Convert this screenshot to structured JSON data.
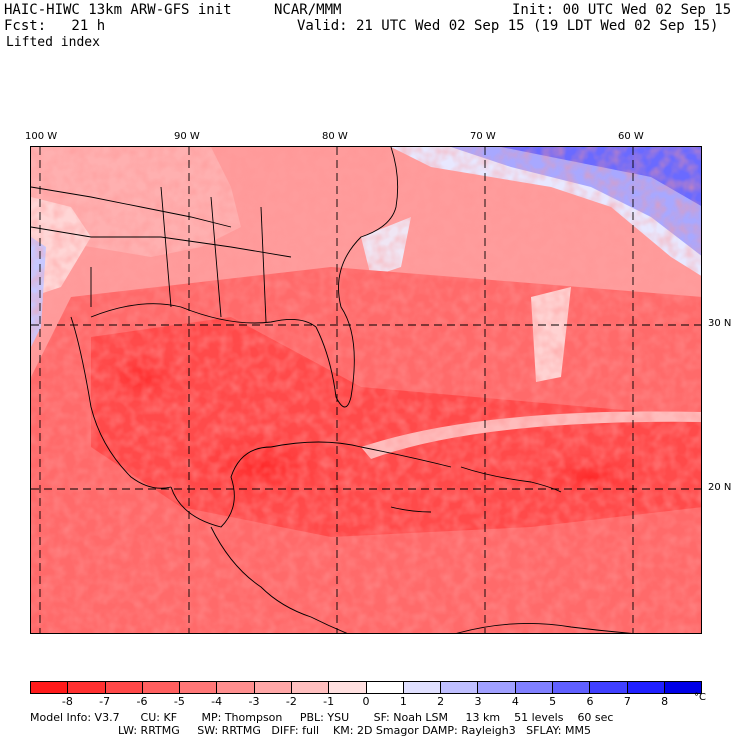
{
  "header": {
    "model": "HAIC-HIWC 13km ARW-GFS init",
    "org": "NCAR/MMM",
    "init": "Init: 00 UTC Wed 02 Sep 15",
    "fcst": "Fcst:   21 h",
    "valid": "Valid: 21 UTC Wed 02 Sep 15 (19 LDT Wed 02 Sep 15)",
    "field": "Lifted index"
  },
  "map": {
    "lon_labels": [
      "100 W",
      "90 W",
      "80 W",
      "70 W",
      "60 W"
    ],
    "lat_labels": [
      "30 N",
      "20 N"
    ]
  },
  "colorbar": {
    "ticks": [
      "-8",
      "-7",
      "-6",
      "-5",
      "-4",
      "-3",
      "-2",
      "-1",
      "0",
      "1",
      "2",
      "3",
      "4",
      "5",
      "6",
      "7",
      "8"
    ],
    "unit": "°C",
    "colors": [
      "#ff1a1a",
      "#ff3030",
      "#ff4848",
      "#ff5f5f",
      "#ff7777",
      "#ff8f8f",
      "#ffa7a7",
      "#ffbfbf",
      "#ffe0e0",
      "#ffffff",
      "#e0e0ff",
      "#bfbfff",
      "#a0a0ff",
      "#8080ff",
      "#6060ff",
      "#4040ff",
      "#2020ff",
      "#0000e6"
    ]
  },
  "footer": {
    "line1": "Model Info: V3.7      CU: KF       MP: Thompson     PBL: YSU       SF: Noah LSM     13 km    51 levels    60 sec",
    "line2": "LW: RRTMG     SW: RRTMG   DIFF: full    KM: 2D Smagor DAMP: Rayleigh3   SFLAY: MM5"
  }
}
